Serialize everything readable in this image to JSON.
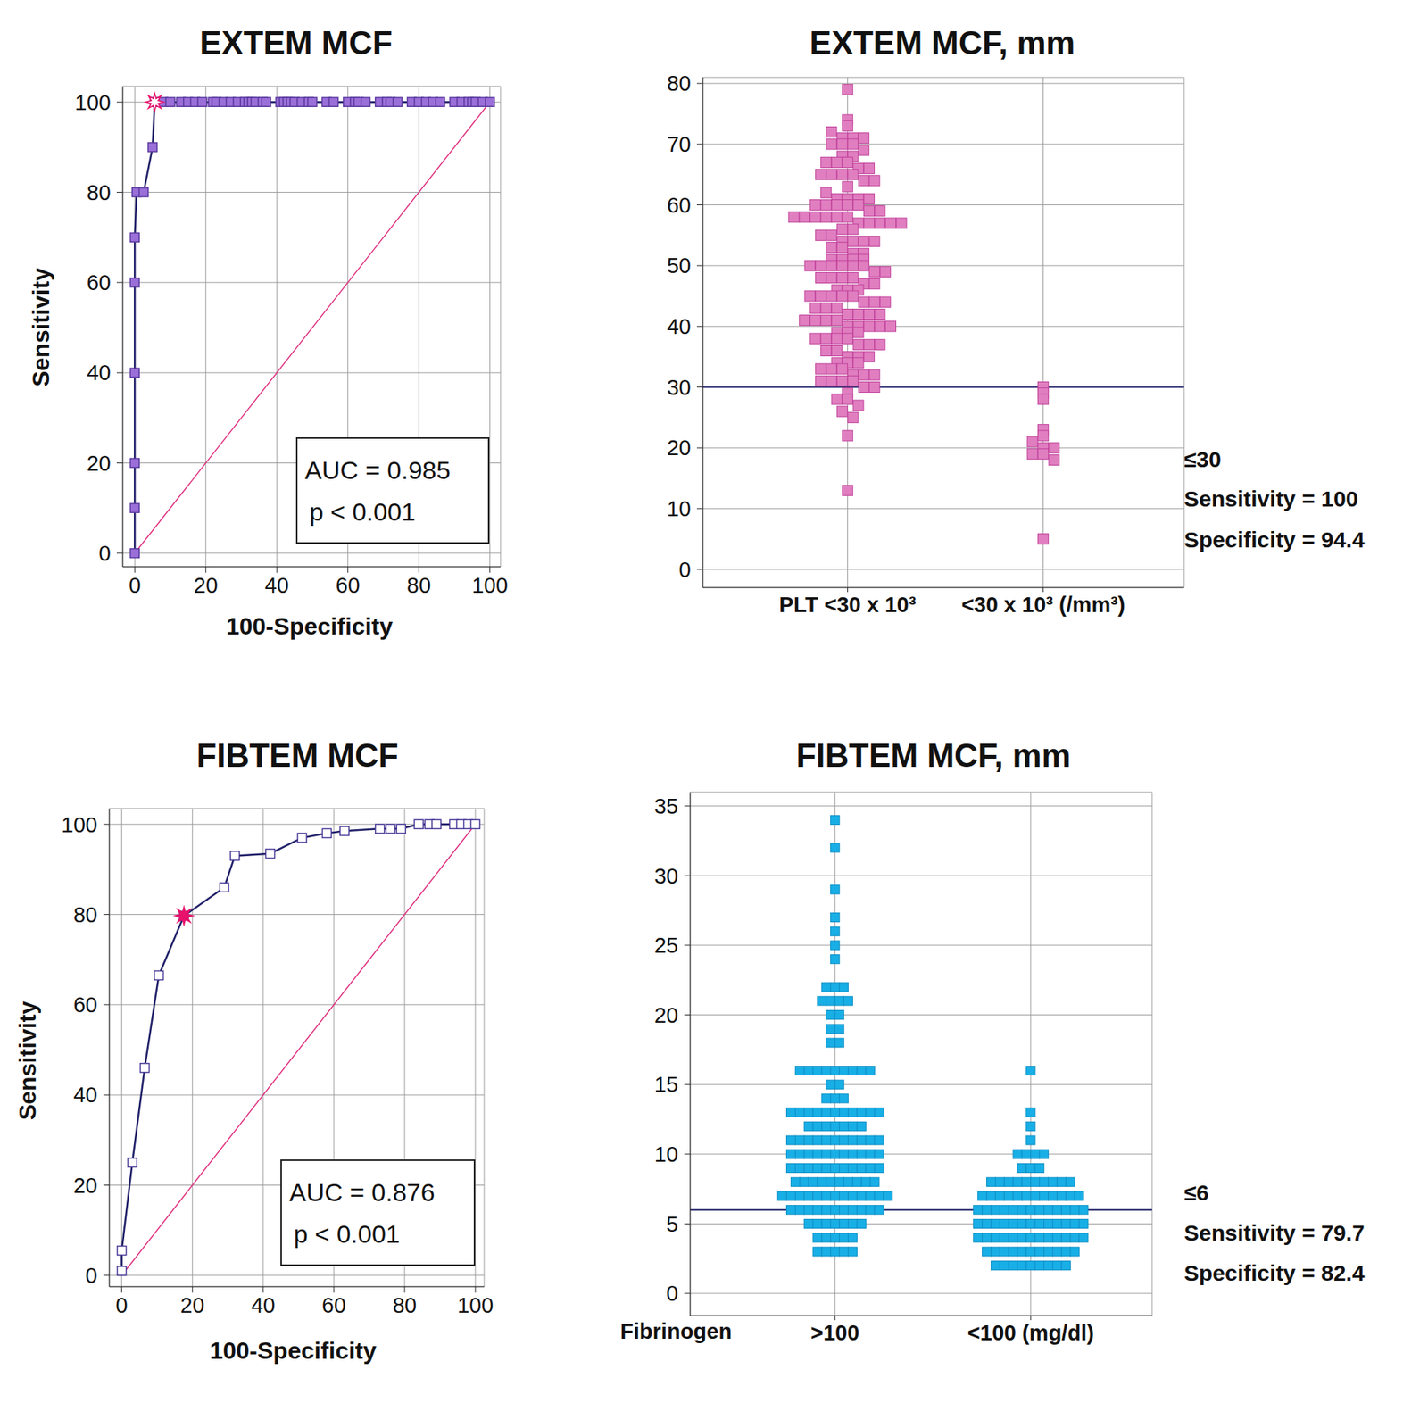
{
  "chart_data": [
    {
      "type": "line",
      "title": "EXTEM MCF",
      "x_label": "100-Specificity",
      "y_label": "Sensitivity",
      "xlim": [
        -3.4,
        103
      ],
      "ylim": [
        -3,
        103.5
      ],
      "xticks": [
        0,
        20,
        40,
        60,
        80,
        100
      ],
      "yticks": [
        0,
        20,
        40,
        60,
        80,
        100
      ],
      "grid": true,
      "series": [
        {
          "x": [
            0,
            0,
            0,
            0,
            0,
            0,
            0.5,
            2.5,
            5,
            5.6,
            8,
            10,
            13,
            15,
            17,
            19,
            22,
            23,
            25,
            27,
            29,
            31,
            32,
            33,
            34,
            36,
            37,
            41,
            42,
            43,
            44,
            45,
            47,
            49,
            50,
            54,
            56,
            60,
            62,
            63,
            65,
            69,
            71,
            72,
            74,
            78,
            80,
            82,
            84,
            86,
            90,
            92,
            94,
            95,
            96,
            98,
            100
          ],
          "values": [
            0,
            10,
            20,
            40,
            60,
            70,
            80,
            80,
            90,
            100,
            100,
            100,
            100,
            100,
            100,
            100,
            100,
            100,
            100,
            100,
            100,
            100,
            100,
            100,
            100,
            100,
            100,
            100,
            100,
            100,
            100,
            100,
            100,
            100,
            100,
            100,
            100,
            100,
            100,
            100,
            100,
            100,
            100,
            100,
            100,
            100,
            100,
            100,
            100,
            100,
            100,
            100,
            100,
            100,
            100,
            100,
            100
          ],
          "color": "#22226a",
          "marker": "square"
        },
        {
          "x": [
            0,
            100
          ],
          "values": [
            0,
            100
          ],
          "color": "#e0307f",
          "marker": "none"
        }
      ],
      "highlight": {
        "x": 5.6,
        "y": 100,
        "color": "#e8116b",
        "marker": "open_star"
      },
      "annotations": [
        "AUC = 0.985",
        "p < 0.001"
      ]
    },
    {
      "type": "dot",
      "title": "EXTEM MCF, mm",
      "categories": [
        "PLT <30 x 10³",
        "<30 x 10³ (/mm³)"
      ],
      "ylim": [
        -3,
        81
      ],
      "yticks": [
        0,
        10,
        20,
        30,
        40,
        50,
        60,
        70,
        80
      ],
      "grid": true,
      "color": "#e07ec0",
      "values": [
        [
          79,
          74,
          73,
          72,
          71,
          71,
          71,
          70,
          70,
          70,
          69,
          68,
          68,
          67,
          67,
          67,
          66,
          66,
          65,
          65,
          65,
          65,
          64,
          64,
          63,
          62,
          61,
          61,
          61,
          61,
          60,
          60,
          60,
          60,
          60,
          59,
          59,
          58,
          58,
          58,
          58,
          58,
          58,
          57,
          57,
          57,
          57,
          57,
          56,
          56,
          55,
          55,
          54,
          54,
          54,
          54,
          53,
          53,
          52,
          52,
          51,
          51,
          51,
          51,
          50,
          50,
          50,
          50,
          50,
          50,
          49,
          49,
          48,
          48,
          48,
          48,
          47,
          47,
          46,
          46,
          46,
          45,
          45,
          45,
          45,
          45,
          44,
          44,
          44,
          43,
          43,
          43,
          42,
          42,
          42,
          42,
          41,
          41,
          41,
          41,
          40,
          40,
          40,
          40,
          40,
          39,
          39,
          39,
          38,
          38,
          38,
          38,
          37,
          37,
          37,
          36,
          36,
          35,
          35,
          35,
          34,
          34,
          34,
          33,
          33,
          33,
          32,
          32,
          32,
          31,
          31,
          31,
          31,
          30,
          30,
          29,
          28,
          28,
          27,
          26,
          25,
          22,
          13
        ],
        [
          30,
          29,
          28,
          23,
          22,
          21,
          20,
          20,
          19,
          19,
          18,
          5
        ]
      ],
      "cutoff": 30,
      "annotations": [
        "≤30",
        "Sensitivity = 100",
        "Specificity = 94.4"
      ]
    },
    {
      "type": "line",
      "title": "FIBTEM MCF",
      "x_label": "100-Specificity",
      "y_label": "Sensitivity",
      "xlim": [
        -3.5,
        102.5
      ],
      "ylim": [
        -2.5,
        103.5
      ],
      "xticks": [
        0,
        20,
        40,
        60,
        80,
        100
      ],
      "yticks": [
        0,
        20,
        40,
        60,
        80,
        100
      ],
      "grid": true,
      "series": [
        {
          "x": [
            0,
            0,
            3,
            6.5,
            10.5,
            17.6,
            29,
            32,
            42,
            51,
            58,
            63,
            73,
            76,
            79,
            84,
            87,
            89,
            94,
            96,
            98,
            100
          ],
          "values": [
            1,
            5.5,
            25,
            46,
            66.5,
            79.7,
            86,
            93,
            93.5,
            97,
            98,
            98.5,
            99,
            99,
            99,
            100,
            100,
            100,
            100,
            100,
            100,
            100
          ],
          "color": "#22226a",
          "marker": "open_square"
        },
        {
          "x": [
            0,
            100
          ],
          "values": [
            0,
            100
          ],
          "color": "#e0307f",
          "marker": "none"
        }
      ],
      "highlight": {
        "x": 17.6,
        "y": 79.7,
        "color": "#e8116b",
        "marker": "star"
      },
      "annotations": [
        "AUC = 0.876",
        "p < 0.001"
      ]
    },
    {
      "type": "dot",
      "title": "FIBTEM MCF, mm",
      "x_label": "Fibrinogen",
      "categories": [
        ">100",
        "<100 (mg/dl)"
      ],
      "ylim": [
        -1.6,
        36
      ],
      "yticks": [
        0,
        5,
        10,
        15,
        20,
        25,
        30,
        35
      ],
      "grid": true,
      "color": "#18aee6",
      "values": [
        [
          34,
          32,
          29,
          27,
          26,
          25,
          24,
          22,
          22,
          22,
          21,
          21,
          21,
          21,
          20,
          20,
          19,
          19,
          18,
          18,
          16,
          16,
          16,
          16,
          16,
          16,
          16,
          16,
          16,
          15,
          15,
          14,
          14,
          14,
          13,
          13,
          13,
          13,
          13,
          13,
          13,
          13,
          13,
          13,
          13,
          12,
          12,
          12,
          12,
          12,
          12,
          12,
          11,
          11,
          11,
          11,
          11,
          11,
          11,
          11,
          11,
          11,
          11,
          10,
          10,
          10,
          10,
          10,
          10,
          10,
          10,
          10,
          10,
          10,
          9,
          9,
          9,
          9,
          9,
          9,
          9,
          9,
          9,
          9,
          9,
          8,
          8,
          8,
          8,
          8,
          8,
          8,
          8,
          8,
          8,
          7,
          7,
          7,
          7,
          7,
          7,
          7,
          7,
          7,
          7,
          7,
          7,
          7,
          6,
          6,
          6,
          6,
          6,
          6,
          6,
          6,
          6,
          6,
          6,
          5,
          5,
          5,
          5,
          5,
          5,
          5,
          4,
          4,
          4,
          4,
          4,
          3,
          3,
          3,
          3,
          3
        ],
        [
          16,
          13,
          12,
          11,
          10,
          10,
          10,
          10,
          9,
          9,
          9,
          8,
          8,
          8,
          8,
          8,
          8,
          8,
          8,
          8,
          8,
          7,
          7,
          7,
          7,
          7,
          7,
          7,
          7,
          7,
          7,
          7,
          7,
          6,
          6,
          6,
          6,
          6,
          6,
          6,
          6,
          6,
          6,
          6,
          6,
          6,
          5,
          5,
          5,
          5,
          5,
          5,
          5,
          5,
          5,
          5,
          5,
          5,
          5,
          4,
          4,
          4,
          4,
          4,
          4,
          4,
          4,
          4,
          4,
          4,
          4,
          4,
          3,
          3,
          3,
          3,
          3,
          3,
          3,
          3,
          3,
          3,
          3,
          2,
          2,
          2,
          2,
          2,
          2,
          2,
          2,
          2
        ]
      ],
      "cutoff": 6,
      "annotations": [
        "≤6",
        "Sensitivity = 79.7",
        "Specificity = 82.4"
      ]
    }
  ]
}
